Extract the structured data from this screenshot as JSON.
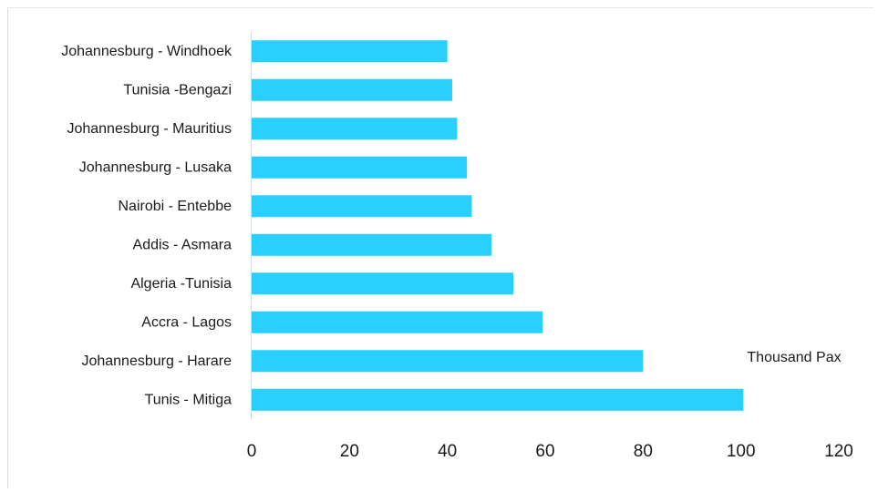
{
  "chart_data": {
    "type": "bar",
    "orientation": "horizontal",
    "categories": [
      "Johannesburg - Windhoek",
      "Tunisia -Bengazi",
      "Johannesburg - Mauritius",
      "Johannesburg - Lusaka",
      "Nairobi - Entebbe",
      "Addis - Asmara",
      "Algeria -Tunisia",
      "Accra - Lagos",
      "Johannesburg - Harare",
      "Tunis - Mitiga"
    ],
    "values": [
      40,
      41,
      42,
      44,
      45,
      49,
      53.5,
      59.5,
      80,
      100.5
    ],
    "title": "",
    "xlabel": "",
    "ylabel": "",
    "annotation": "Thousand Pax",
    "xlim": [
      0,
      120
    ],
    "xticks": [
      0,
      20,
      40,
      60,
      80,
      100,
      120
    ],
    "grid": false,
    "legend": "none",
    "bar_color": "#29d0fd",
    "axis_color": "#d9d9d9"
  }
}
